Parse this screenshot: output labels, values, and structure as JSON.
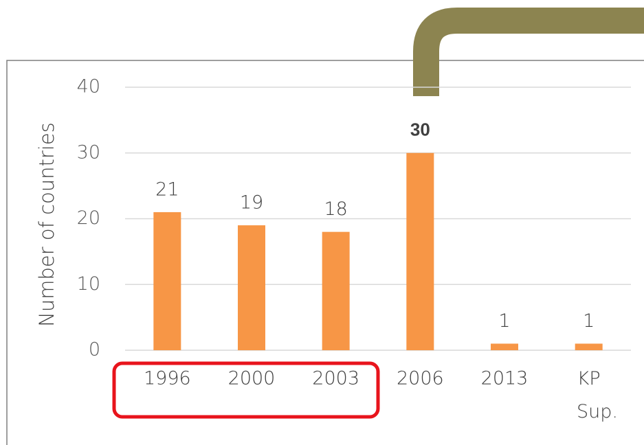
{
  "chart_data": {
    "type": "bar",
    "y_axis_label": "Number of countries",
    "categories": [
      "1996",
      "2000",
      "2003",
      "2006",
      "2013",
      "KP Sup."
    ],
    "values": [
      21,
      19,
      18,
      30,
      1,
      1
    ],
    "color": "#f79646",
    "ylim": [
      0,
      40
    ],
    "yticks": [
      0,
      10,
      20,
      30,
      40
    ],
    "grid": true
  }
}
